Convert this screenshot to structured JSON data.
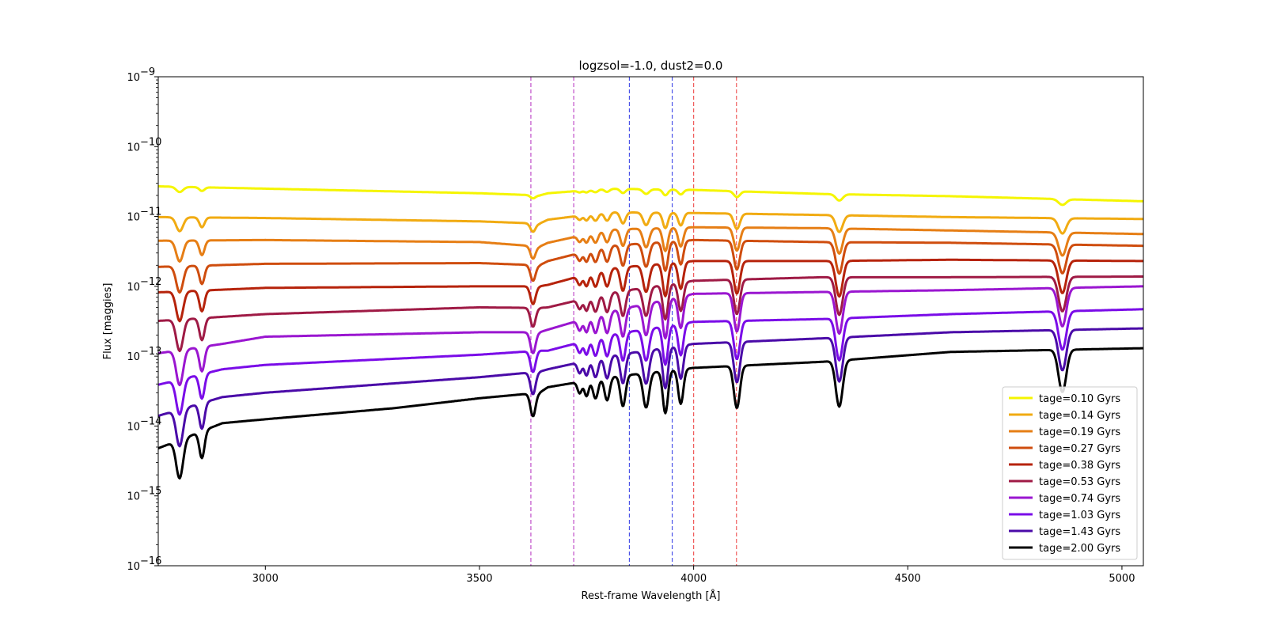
{
  "chart_data": {
    "type": "line",
    "title": "logzsol=-1.0, dust2=0.0",
    "xlabel": "Rest-frame Wavelength [Å]",
    "ylabel": "Flux [maggies]",
    "xlim": [
      2750,
      5050
    ],
    "ylim": [
      1e-16,
      1e-09
    ],
    "yscale": "log",
    "x_ticks": [
      3000,
      3500,
      4000,
      4500,
      5000
    ],
    "y_tick_exponents": [
      -16,
      -15,
      -14,
      -13,
      -12,
      -11,
      -10,
      -9
    ],
    "y_tick_base": "10",
    "grid": false,
    "legend_position": "lower-right",
    "vlines": [
      {
        "x": 3620,
        "color": "#c04fc9"
      },
      {
        "x": 3720,
        "color": "#c04fc9"
      },
      {
        "x": 3850,
        "color": "#4a52e8"
      },
      {
        "x": 3950,
        "color": "#4a52e8"
      },
      {
        "x": 4000,
        "color": "#f05a5a"
      },
      {
        "x": 4100,
        "color": "#f05a5a"
      }
    ],
    "features": [
      {
        "x": 3970,
        "width": 6,
        "k": 0.45
      },
      {
        "x": 3934,
        "width": 6,
        "k": 0.55
      },
      {
        "x": 3889,
        "width": 7,
        "k": 0.45
      },
      {
        "x": 3835,
        "width": 6,
        "k": 0.4
      },
      {
        "x": 3798,
        "width": 6,
        "k": 0.3
      },
      {
        "x": 3771,
        "width": 6,
        "k": 0.25
      },
      {
        "x": 3750,
        "width": 5,
        "k": 0.2
      },
      {
        "x": 3734,
        "width": 5,
        "k": 0.15
      },
      {
        "x": 4101,
        "width": 7,
        "k": 0.55
      },
      {
        "x": 4340,
        "width": 8,
        "k": 0.6
      },
      {
        "x": 4861,
        "width": 9,
        "k": 0.55
      },
      {
        "x": 2800,
        "width": 8,
        "k": 0.5
      },
      {
        "x": 2852,
        "width": 6,
        "k": 0.35
      },
      {
        "x": 3625,
        "width": 6,
        "k": 0.3
      }
    ],
    "series": [
      {
        "name": "tage=0.10 Gyrs",
        "color": "#f5f500",
        "values": [
          [
            2750,
            2.7e-11
          ],
          [
            3000,
            2.5e-11
          ],
          [
            3500,
            2.15e-11
          ],
          [
            3640,
            2e-11
          ],
          [
            3660,
            2.15e-11
          ],
          [
            3800,
            2.5e-11
          ],
          [
            4000,
            2.4e-11
          ],
          [
            4300,
            2.1e-11
          ],
          [
            4600,
            1.95e-11
          ],
          [
            5050,
            1.65e-11
          ]
        ],
        "absorb": 0.15
      },
      {
        "name": "tage=0.14 Gyrs",
        "color": "#f1ab12",
        "values": [
          [
            2750,
            9.8e-12
          ],
          [
            3000,
            9.5e-12
          ],
          [
            3500,
            8.5e-12
          ],
          [
            3640,
            7.9e-12
          ],
          [
            3660,
            9e-12
          ],
          [
            3800,
            1.15e-11
          ],
          [
            4000,
            1.12e-11
          ],
          [
            4300,
            1.05e-11
          ],
          [
            4600,
            9.8e-12
          ],
          [
            5050,
            9.2e-12
          ]
        ],
        "absorb": 0.4
      },
      {
        "name": "tage=0.19 Gyrs",
        "color": "#e67e15",
        "values": [
          [
            2750,
            4.5e-12
          ],
          [
            3000,
            4.6e-12
          ],
          [
            3500,
            4.3e-12
          ],
          [
            3640,
            3.7e-12
          ],
          [
            3660,
            4.2e-12
          ],
          [
            3800,
            6.5e-12
          ],
          [
            4000,
            7e-12
          ],
          [
            4300,
            6.8e-12
          ],
          [
            4600,
            6.3e-12
          ],
          [
            5050,
            5.6e-12
          ]
        ],
        "absorb": 0.6
      },
      {
        "name": "tage=0.27 Gyrs",
        "color": "#cf4d0e",
        "values": [
          [
            2750,
            1.9e-12
          ],
          [
            3000,
            2.1e-12
          ],
          [
            3500,
            2.15e-12
          ],
          [
            3640,
            2e-12
          ],
          [
            3660,
            2.3e-12
          ],
          [
            3800,
            3.8e-12
          ],
          [
            4000,
            4.6e-12
          ],
          [
            4300,
            4.3e-12
          ],
          [
            4600,
            4.2e-12
          ],
          [
            5050,
            3.8e-12
          ]
        ],
        "absorb": 0.75
      },
      {
        "name": "tage=0.38 Gyrs",
        "color": "#b6230b",
        "values": [
          [
            2750,
            8.2e-13
          ],
          [
            3000,
            9.5e-13
          ],
          [
            3500,
            1e-12
          ],
          [
            3640,
            1e-12
          ],
          [
            3660,
            1.05e-12
          ],
          [
            3800,
            1.8e-12
          ],
          [
            4000,
            2.3e-12
          ],
          [
            4300,
            2.3e-12
          ],
          [
            4600,
            2.4e-12
          ],
          [
            5050,
            2.3e-12
          ]
        ],
        "absorb": 0.85
      },
      {
        "name": "tage=0.53 Gyrs",
        "color": "#9f1a45",
        "values": [
          [
            2750,
            3.2e-13
          ],
          [
            3000,
            4e-13
          ],
          [
            3500,
            5e-13
          ],
          [
            3640,
            4.9e-13
          ],
          [
            3660,
            5e-13
          ],
          [
            3800,
            8e-13
          ],
          [
            4000,
            1.2e-12
          ],
          [
            4300,
            1.35e-12
          ],
          [
            4600,
            1.35e-12
          ],
          [
            5050,
            1.38e-12
          ]
        ],
        "absorb": 0.9
      },
      {
        "name": "tage=0.74 Gyrs",
        "color": "#9a16d0",
        "values": [
          [
            2750,
            1.1e-13
          ],
          [
            2900,
            1.5e-13
          ],
          [
            3000,
            1.9e-13
          ],
          [
            3500,
            2.2e-13
          ],
          [
            3640,
            2.2e-13
          ],
          [
            3660,
            2.4e-13
          ],
          [
            3800,
            4.3e-13
          ],
          [
            4000,
            7.8e-13
          ],
          [
            4300,
            8.3e-13
          ],
          [
            4600,
            8.8e-13
          ],
          [
            5050,
            1e-12
          ]
        ],
        "absorb": 1.0
      },
      {
        "name": "tage=1.03 Gyrs",
        "color": "#7a0ce8",
        "values": [
          [
            2750,
            3.9e-14
          ],
          [
            2900,
            6.5e-14
          ],
          [
            3000,
            7.5e-14
          ],
          [
            3500,
            1.05e-13
          ],
          [
            3640,
            1.2e-13
          ],
          [
            3660,
            1.2e-13
          ],
          [
            3800,
            2e-13
          ],
          [
            4000,
            3.1e-13
          ],
          [
            4300,
            3.4e-13
          ],
          [
            4600,
            4e-13
          ],
          [
            5050,
            4.7e-13
          ]
        ],
        "absorb": 1.0
      },
      {
        "name": "tage=1.43 Gyrs",
        "color": "#4a0aa8",
        "values": [
          [
            2750,
            1.4e-14
          ],
          [
            2900,
            2.6e-14
          ],
          [
            3000,
            3e-14
          ],
          [
            3500,
            5e-14
          ],
          [
            3640,
            6e-14
          ],
          [
            3660,
            6.5e-14
          ],
          [
            3800,
            1e-13
          ],
          [
            4000,
            1.5e-13
          ],
          [
            4300,
            1.8e-13
          ],
          [
            4600,
            2.2e-13
          ],
          [
            5050,
            2.5e-13
          ]
        ],
        "absorb": 1.05
      },
      {
        "name": "tage=2.00 Gyrs",
        "color": "#000000",
        "values": [
          [
            2750,
            4.8e-15
          ],
          [
            2900,
            1.1e-14
          ],
          [
            3000,
            1.25e-14
          ],
          [
            3300,
            1.8e-14
          ],
          [
            3500,
            2.5e-14
          ],
          [
            3640,
            3e-14
          ],
          [
            3660,
            3.6e-14
          ],
          [
            3800,
            5e-14
          ],
          [
            4000,
            6.8e-14
          ],
          [
            4300,
            8.3e-14
          ],
          [
            4600,
            1.15e-13
          ],
          [
            5050,
            1.3e-13
          ]
        ],
        "absorb": 1.1
      }
    ]
  }
}
